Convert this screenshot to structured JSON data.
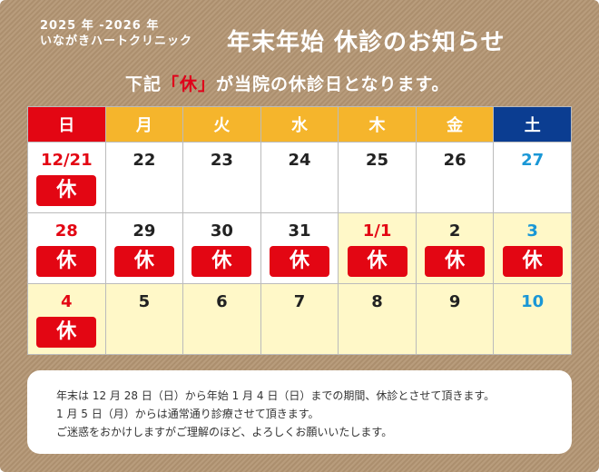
{
  "header": {
    "year_range": "2025 年 -2026 年",
    "clinic_name": "いながきハートクリニック",
    "title": "年末年始 休診のお知らせ",
    "subtitle_pre": "下記",
    "subtitle_hl": "「休」",
    "subtitle_post": "が当院の休診日となります。"
  },
  "calendar": {
    "weekdays": [
      "日",
      "月",
      "火",
      "水",
      "木",
      "金",
      "土"
    ],
    "holiday_label": "休",
    "weeks": [
      [
        {
          "day": "12/21",
          "type": "sun",
          "closed": true,
          "hol": false
        },
        {
          "day": "22",
          "type": "wk",
          "closed": false,
          "hol": false
        },
        {
          "day": "23",
          "type": "wk",
          "closed": false,
          "hol": false
        },
        {
          "day": "24",
          "type": "wk",
          "closed": false,
          "hol": false
        },
        {
          "day": "25",
          "type": "wk",
          "closed": false,
          "hol": false
        },
        {
          "day": "26",
          "type": "wk",
          "closed": false,
          "hol": false
        },
        {
          "day": "27",
          "type": "sat",
          "closed": false,
          "hol": false
        }
      ],
      [
        {
          "day": "28",
          "type": "sun",
          "closed": true,
          "hol": false
        },
        {
          "day": "29",
          "type": "wk",
          "closed": true,
          "hol": false
        },
        {
          "day": "30",
          "type": "wk",
          "closed": true,
          "hol": false
        },
        {
          "day": "31",
          "type": "wk",
          "closed": true,
          "hol": false
        },
        {
          "day": "1/1",
          "type": "sun",
          "closed": true,
          "hol": true
        },
        {
          "day": "2",
          "type": "wk",
          "closed": true,
          "hol": true
        },
        {
          "day": "3",
          "type": "sat",
          "closed": true,
          "hol": true
        }
      ],
      [
        {
          "day": "4",
          "type": "sun",
          "closed": true,
          "hol": true
        },
        {
          "day": "5",
          "type": "wk",
          "closed": false,
          "hol": true
        },
        {
          "day": "6",
          "type": "wk",
          "closed": false,
          "hol": true
        },
        {
          "day": "7",
          "type": "wk",
          "closed": false,
          "hol": true
        },
        {
          "day": "8",
          "type": "wk",
          "closed": false,
          "hol": true
        },
        {
          "day": "9",
          "type": "wk",
          "closed": false,
          "hol": true
        },
        {
          "day": "10",
          "type": "sat",
          "closed": false,
          "hol": true
        }
      ]
    ]
  },
  "note": {
    "line1": "年末は 12 月 28 日（日）から年始 1 月 4 日（日）までの期間、休診とさせて頂きます。",
    "line2": "1 月 5 日（月）からは通常通り診療させて頂きます。",
    "line3": "ご迷惑をおかけしますがご理解のほど、よろしくお願いいたします。"
  },
  "colors": {
    "background": "#b39572",
    "sunday_header": "#e30613",
    "weekday_header": "#f5b52c",
    "saturday_header": "#0b3d91",
    "closed_badge": "#e30613",
    "holiday_cell": "#fff8c8",
    "saturday_text": "#1a97d6"
  }
}
